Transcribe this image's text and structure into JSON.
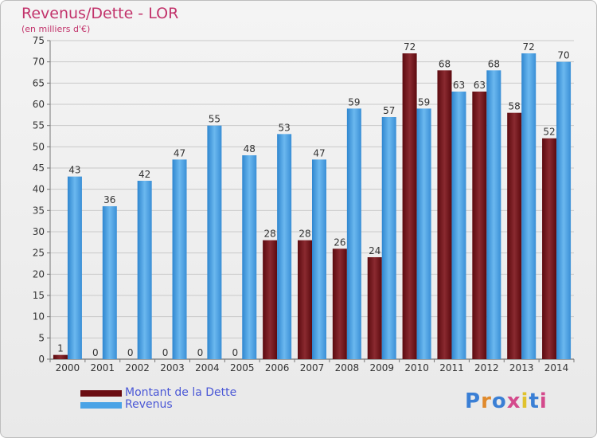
{
  "title": "Revenus/Dette - LOR",
  "subtitle": "(en milliers d'€)",
  "colors": {
    "title": "#c2336b",
    "debt_bar": "#7a2026",
    "revenue_bar": "#4a9ede",
    "legend_text": "#4a57d6",
    "grid": "#c9c9c9",
    "axis_text": "#333333"
  },
  "legend": [
    {
      "label": "Montant de la Dette",
      "color": "#6b0d12"
    },
    {
      "label": "Revenus",
      "color": "#4aa3e6"
    }
  ],
  "logo": {
    "text": "Proxiti",
    "letter_colors": [
      "#3a7fd5",
      "#e08a2c",
      "#3a7fd5",
      "#d44a8c",
      "#e0c22c",
      "#3a7fd5",
      "#d44a8c"
    ]
  },
  "chart_data": {
    "type": "bar",
    "title": "Revenus/Dette - LOR",
    "subtitle": "(en milliers d'€)",
    "categories": [
      "2000",
      "2001",
      "2002",
      "2003",
      "2004",
      "2005",
      "2006",
      "2007",
      "2008",
      "2009",
      "2010",
      "2011",
      "2012",
      "2013",
      "2014"
    ],
    "series": [
      {
        "name": "Montant de la Dette",
        "values": [
          1,
          0,
          0,
          0,
          0,
          0,
          28,
          28,
          26,
          24,
          72,
          68,
          63,
          58,
          52
        ]
      },
      {
        "name": "Revenus",
        "values": [
          43,
          36,
          42,
          47,
          55,
          48,
          53,
          47,
          59,
          57,
          59,
          63,
          68,
          72,
          70
        ]
      }
    ],
    "ylim": [
      0,
      75
    ],
    "ytick_step": 5,
    "grid": true,
    "legend_position": "bottom-left"
  }
}
